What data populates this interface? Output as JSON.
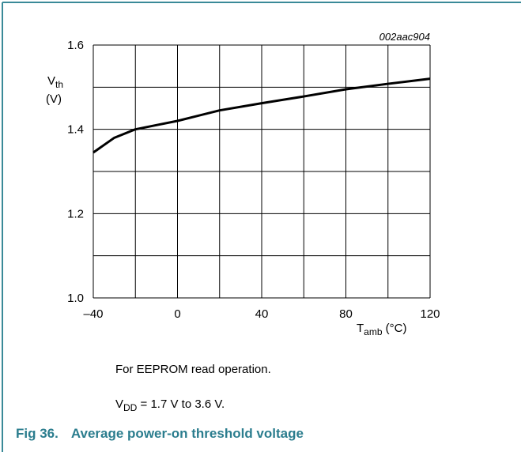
{
  "chart_data": {
    "type": "line",
    "figure_id": "002aac904",
    "y_label": {
      "main": "V",
      "sub": "th",
      "unit": "(V)"
    },
    "x_label": {
      "main": "T",
      "sub": "amb",
      "unit": " (°C)"
    },
    "x": [
      -40,
      -30,
      -20,
      -10,
      0,
      20,
      40,
      60,
      80,
      100,
      120
    ],
    "series": [
      {
        "color": "#000000",
        "values": [
          1.345,
          1.38,
          1.4,
          1.41,
          1.42,
          1.445,
          1.462,
          1.478,
          1.495,
          1.508,
          1.52
        ]
      }
    ],
    "xlim": [
      -40,
      120
    ],
    "xticks": [
      {
        "value": -40,
        "label": "–40"
      },
      0,
      40,
      80,
      120
    ],
    "xgrid": [
      -40,
      -20,
      0,
      20,
      40,
      60,
      80,
      100,
      120
    ],
    "ylim": [
      1,
      1.6
    ],
    "yticks": [
      {
        "value": 1,
        "label": "1.0"
      },
      1.2,
      1.4,
      1.6
    ],
    "ygrid": [
      1,
      1.1,
      1.2,
      1.3,
      1.4,
      1.5,
      1.6
    ],
    "grid": true,
    "notes": [
      "For EEPROM read operation."
    ],
    "supply_note": {
      "main": "V",
      "sub": "DD",
      "rest": " = 1.7 V to 3.6 V."
    },
    "caption": {
      "number": "Fig 36.",
      "title": "Average power-on threshold voltage"
    }
  }
}
